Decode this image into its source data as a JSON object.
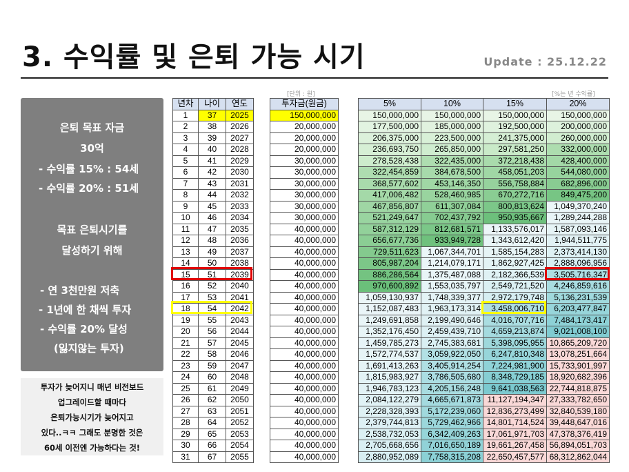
{
  "header": {
    "title": "3. 수익률 및 은퇴 가능 시기",
    "update": "Update : 25.12.22"
  },
  "left_panel": {
    "lines": [
      "은퇴 목표 자금",
      "30억",
      "- 수익률 15% : 54세",
      "- 수익률 20% : 51세",
      "목표 은퇴시기를",
      "달성하기 위해",
      "- 연 3천만원 저축",
      "- 1년에 한 채씩 투자",
      "- 수익률 20% 달성",
      "(잃지않는 투자)"
    ]
  },
  "note": {
    "lines": [
      "투자가 늦어지니 매년 비전보드",
      "업그레이드할 때마다",
      "은퇴가능시기가 늦어지고",
      "있다..ㅋㅋ 그래도 분명한 것은",
      "60세 이전엔 가능하다는 것!"
    ]
  },
  "table_left": {
    "headers": [
      "년차",
      "나이",
      "연도"
    ],
    "unit_label": "[단위 : 원]",
    "invest_header": "투자금(원금)"
  },
  "table_right": {
    "headers": [
      "5%",
      "10%",
      "15%",
      "20%"
    ],
    "unit_label": "[%는 년 수익률]"
  },
  "colors": {
    "highlight_red": "#e00000",
    "highlight_yellow": "#ffff00",
    "header_bg": "#d6e0f0",
    "panel_bg": "#7f7f7f"
  },
  "rows": [
    [
      "1",
      "37",
      "2025",
      "150,000,000",
      "150,000,000",
      "150,000,000",
      "150,000,000",
      "150,000,000"
    ],
    [
      "2",
      "38",
      "2026",
      "20,000,000",
      "177,500,000",
      "185,000,000",
      "192,500,000",
      "200,000,000"
    ],
    [
      "3",
      "39",
      "2027",
      "20,000,000",
      "206,375,000",
      "223,500,000",
      "241,375,000",
      "260,000,000"
    ],
    [
      "4",
      "40",
      "2028",
      "20,000,000",
      "236,693,750",
      "265,850,000",
      "297,581,250",
      "332,000,000"
    ],
    [
      "5",
      "41",
      "2029",
      "30,000,000",
      "278,528,438",
      "322,435,000",
      "372,218,438",
      "428,400,000"
    ],
    [
      "6",
      "42",
      "2030",
      "30,000,000",
      "322,454,859",
      "384,678,500",
      "458,051,203",
      "544,080,000"
    ],
    [
      "7",
      "43",
      "2031",
      "30,000,000",
      "368,577,602",
      "453,146,350",
      "556,758,884",
      "682,896,000"
    ],
    [
      "8",
      "44",
      "2032",
      "30,000,000",
      "417,006,482",
      "528,460,985",
      "670,272,716",
      "849,475,200"
    ],
    [
      "9",
      "45",
      "2033",
      "30,000,000",
      "467,856,807",
      "611,307,084",
      "800,813,624",
      "1,049,370,240"
    ],
    [
      "10",
      "46",
      "2034",
      "30,000,000",
      "521,249,647",
      "702,437,792",
      "950,935,667",
      "1,289,244,288"
    ],
    [
      "11",
      "47",
      "2035",
      "40,000,000",
      "587,312,129",
      "812,681,571",
      "1,133,576,017",
      "1,587,093,146"
    ],
    [
      "12",
      "48",
      "2036",
      "40,000,000",
      "656,677,736",
      "933,949,728",
      "1,343,612,420",
      "1,944,511,775"
    ],
    [
      "13",
      "49",
      "2037",
      "40,000,000",
      "729,511,623",
      "1,067,344,701",
      "1,585,154,283",
      "2,373,414,130"
    ],
    [
      "14",
      "50",
      "2038",
      "40,000,000",
      "805,987,204",
      "1,214,079,171",
      "1,862,927,425",
      "2,888,096,956"
    ],
    [
      "15",
      "51",
      "2039",
      "40,000,000",
      "886,286,564",
      "1,375,487,088",
      "2,182,366,539",
      "3,505,716,347"
    ],
    [
      "16",
      "52",
      "2040",
      "40,000,000",
      "970,600,892",
      "1,553,035,797",
      "2,549,721,520",
      "4,246,859,616"
    ],
    [
      "17",
      "53",
      "2041",
      "40,000,000",
      "1,059,130,937",
      "1,748,339,377",
      "2,972,179,748",
      "5,136,231,539"
    ],
    [
      "18",
      "54",
      "2042",
      "40,000,000",
      "1,152,087,483",
      "1,963,173,314",
      "3,458,006,710",
      "6,203,477,847"
    ],
    [
      "19",
      "55",
      "2043",
      "40,000,000",
      "1,249,691,858",
      "2,199,490,646",
      "4,016,707,716",
      "7,484,173,417"
    ],
    [
      "20",
      "56",
      "2044",
      "40,000,000",
      "1,352,176,450",
      "2,459,439,710",
      "4,659,213,874",
      "9,021,008,100"
    ],
    [
      "21",
      "57",
      "2045",
      "40,000,000",
      "1,459,785,273",
      "2,745,383,681",
      "5,398,095,955",
      "10,865,209,720"
    ],
    [
      "22",
      "58",
      "2046",
      "40,000,000",
      "1,572,774,537",
      "3,059,922,050",
      "6,247,810,348",
      "13,078,251,664"
    ],
    [
      "23",
      "59",
      "2047",
      "40,000,000",
      "1,691,413,263",
      "3,405,914,254",
      "7,224,981,900",
      "15,733,901,997"
    ],
    [
      "24",
      "60",
      "2048",
      "40,000,000",
      "1,815,983,927",
      "3,786,505,680",
      "8,348,729,185",
      "18,920,682,396"
    ],
    [
      "25",
      "61",
      "2049",
      "40,000,000",
      "1,946,783,123",
      "4,205,156,248",
      "9,641,038,563",
      "22,744,818,875"
    ],
    [
      "26",
      "62",
      "2050",
      "40,000,000",
      "2,084,122,279",
      "4,665,671,873",
      "11,127,194,347",
      "27,333,782,650"
    ],
    [
      "27",
      "63",
      "2051",
      "40,000,000",
      "2,228,328,393",
      "5,172,239,060",
      "12,836,273,499",
      "32,840,539,180"
    ],
    [
      "28",
      "64",
      "2052",
      "40,000,000",
      "2,379,744,813",
      "5,729,462,966",
      "14,801,714,524",
      "39,448,647,016"
    ],
    [
      "29",
      "65",
      "2053",
      "40,000,000",
      "2,538,732,053",
      "6,342,409,263",
      "17,061,971,703",
      "47,378,376,419"
    ],
    [
      "30",
      "66",
      "2054",
      "40,000,000",
      "2,705,668,656",
      "7,016,650,189",
      "19,661,267,458",
      "56,894,051,703"
    ],
    [
      "31",
      "67",
      "2055",
      "40,000,000",
      "2,880,952,089",
      "7,758,315,208",
      "22,650,457,577",
      "68,312,862,044"
    ]
  ]
}
